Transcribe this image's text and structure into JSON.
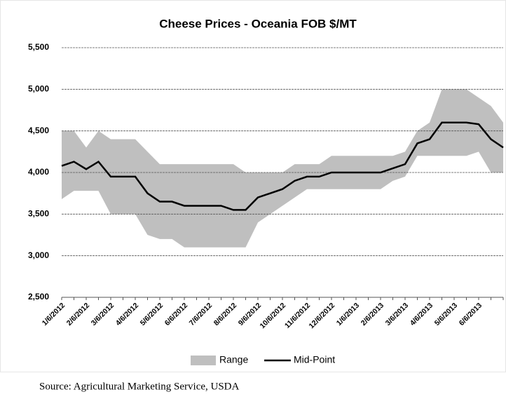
{
  "chart_data": {
    "type": "range-line",
    "title": "Cheese Prices - Oceania FOB $/MT",
    "source": "Source:  Agricultural Marketing Service, USDA",
    "categories": [
      "1/6/2012",
      null,
      "2/6/2012",
      null,
      "3/6/2012",
      null,
      "4/6/2012",
      null,
      "5/6/2012",
      null,
      "6/6/2012",
      null,
      "7/6/2012",
      null,
      "8/6/2012",
      null,
      "9/6/2012",
      null,
      "10/6/2012",
      null,
      "11/6/2012",
      null,
      "12/6/2012",
      null,
      "1/6/2013",
      null,
      "2/6/2013",
      null,
      "3/6/2013",
      null,
      "4/6/2013",
      null,
      "5/6/2013",
      null,
      "6/6/2013",
      null,
      null
    ],
    "series": [
      {
        "name": "Range",
        "color": "#bfbfbf",
        "low": [
          3680,
          3780,
          3780,
          3780,
          3500,
          3500,
          3500,
          3250,
          3200,
          3200,
          3100,
          3100,
          3100,
          3100,
          3100,
          3100,
          3400,
          3500,
          3600,
          3700,
          3800,
          3800,
          3800,
          3800,
          3800,
          3800,
          3800,
          3900,
          3950,
          4200,
          4200,
          4200,
          4200,
          4200,
          4250,
          4000,
          4000
        ],
        "high": [
          4500,
          4500,
          4300,
          4500,
          4400,
          4400,
          4400,
          4250,
          4100,
          4100,
          4100,
          4100,
          4100,
          4100,
          4100,
          4000,
          4000,
          4000,
          4000,
          4100,
          4100,
          4100,
          4200,
          4200,
          4200,
          4200,
          4200,
          4200,
          4250,
          4500,
          4600,
          5000,
          5000,
          5000,
          4900,
          4800,
          4600
        ]
      },
      {
        "name": "Mid-Point",
        "color": "#000000",
        "values": [
          4080,
          4130,
          4040,
          4130,
          3950,
          3950,
          3950,
          3750,
          3650,
          3650,
          3600,
          3600,
          3600,
          3600,
          3550,
          3550,
          3700,
          3750,
          3800,
          3900,
          3950,
          3950,
          4000,
          4000,
          4000,
          4000,
          4000,
          4050,
          4100,
          4350,
          4400,
          4600,
          4600,
          4600,
          4580,
          4400,
          4300
        ]
      }
    ],
    "ylim": [
      2500,
      5500
    ],
    "yticks": [
      {
        "value": 2500,
        "label": "2,500"
      },
      {
        "value": 3000,
        "label": "3,000"
      },
      {
        "value": 3500,
        "label": "3,500"
      },
      {
        "value": 4000,
        "label": "4,000"
      },
      {
        "value": 4500,
        "label": "4,500"
      },
      {
        "value": 5000,
        "label": "5,000"
      },
      {
        "value": 5500,
        "label": "5,500"
      }
    ],
    "grid": true,
    "legend": "bottom"
  }
}
